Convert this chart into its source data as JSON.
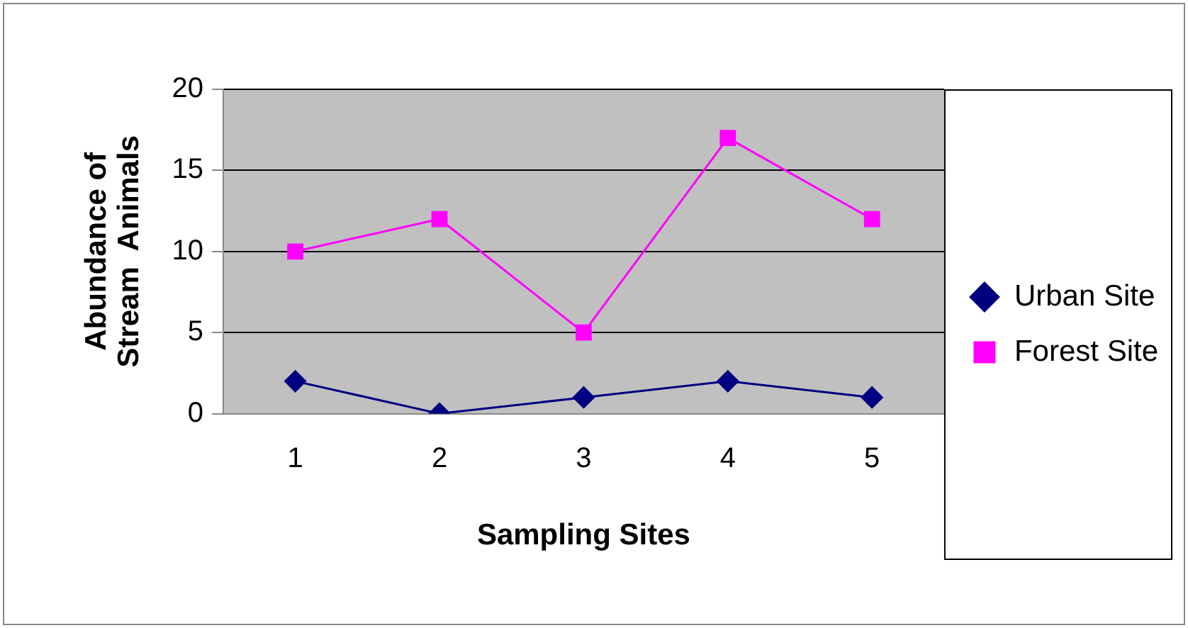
{
  "chart_data": {
    "type": "line",
    "xlabel": "Sampling Sites",
    "ylabel": "Abundance of\nStream  Animals",
    "categories": [
      "1",
      "2",
      "3",
      "4",
      "5"
    ],
    "series": [
      {
        "name": "Urban Site",
        "color": "#000080",
        "values": [
          2,
          0,
          1,
          2,
          1
        ],
        "marker": "diamond"
      },
      {
        "name": "Forest Site",
        "color": "#ff00ff",
        "values": [
          10,
          12,
          5,
          17,
          12
        ],
        "marker": "square"
      }
    ],
    "ylim": [
      0,
      20
    ],
    "yticks": [
      0,
      5,
      10,
      15,
      20
    ],
    "grid": "y",
    "legend": "right"
  }
}
